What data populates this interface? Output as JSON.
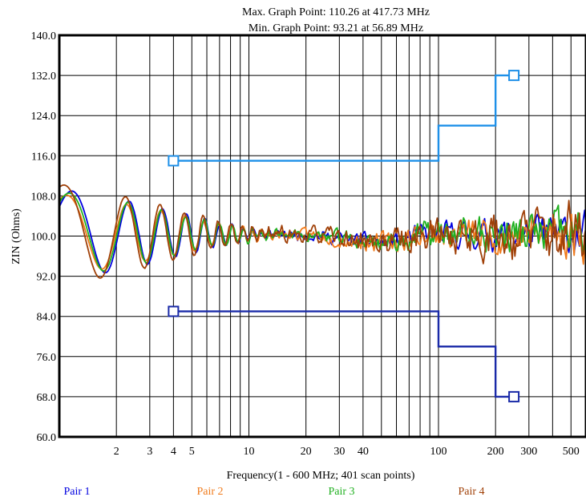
{
  "chart_data": {
    "type": "line",
    "title_lines": [
      "Max. Graph Point: 110.26 at 417.73 MHz",
      "Min. Graph Point: 93.21 at 56.89 MHz"
    ],
    "xlabel": "Frequency(1 - 600 MHz; 401 scan points)",
    "ylabel": "ZIN (Ohms)",
    "x_scale": "log",
    "xlim": [
      1,
      600
    ],
    "ylim": [
      60,
      140
    ],
    "y_ticks": [
      "60.0",
      "68.0",
      "76.0",
      "84.0",
      "92.0",
      "100.0",
      "108.0",
      "116.0",
      "124.0",
      "132.0",
      "140.0"
    ],
    "x_ticks": [
      {
        "value": 2,
        "label": "2"
      },
      {
        "value": 3,
        "label": "3"
      },
      {
        "value": 4,
        "label": "4"
      },
      {
        "value": 5,
        "label": "5"
      },
      {
        "value": 10,
        "label": "10"
      },
      {
        "value": 20,
        "label": "20"
      },
      {
        "value": 30,
        "label": "30"
      },
      {
        "value": 40,
        "label": "40"
      },
      {
        "value": 100,
        "label": "100"
      },
      {
        "value": 200,
        "label": "200"
      },
      {
        "value": 300,
        "label": "300"
      },
      {
        "value": 500,
        "label": "500"
      }
    ],
    "grid": true,
    "legend_position": "bottom",
    "limits": [
      {
        "name": "upper-limit",
        "color": "#1e90e8",
        "points": [
          [
            4,
            115
          ],
          [
            100,
            115
          ],
          [
            100,
            122
          ],
          [
            200,
            122
          ],
          [
            200,
            132
          ],
          [
            250,
            132
          ]
        ],
        "marker_at": [
          [
            4,
            115
          ],
          [
            250,
            132
          ]
        ]
      },
      {
        "name": "lower-limit",
        "color": "#1a2aa8",
        "points": [
          [
            4,
            85
          ],
          [
            100,
            85
          ],
          [
            100,
            78
          ],
          [
            200,
            78
          ],
          [
            200,
            68
          ],
          [
            250,
            68
          ]
        ],
        "marker_at": [
          [
            4,
            85
          ],
          [
            250,
            68
          ]
        ]
      }
    ],
    "series": [
      {
        "name": "Pair 1",
        "color": "#0000e0",
        "seed": 11,
        "amp": 9.0,
        "phase": 0.0,
        "hf_noise": 2.5
      },
      {
        "name": "Pair 2",
        "color": "#f07a1a",
        "seed": 23,
        "amp": 8.0,
        "phase": 0.06,
        "hf_noise": 3.0
      },
      {
        "name": "Pair 3",
        "color": "#20b020",
        "seed": 37,
        "amp": 8.5,
        "phase": 0.03,
        "hf_noise": 3.0
      },
      {
        "name": "Pair 4",
        "color": "#a04008",
        "seed": 53,
        "amp": 10.0,
        "phase": 0.09,
        "hf_noise": 3.8
      }
    ]
  }
}
